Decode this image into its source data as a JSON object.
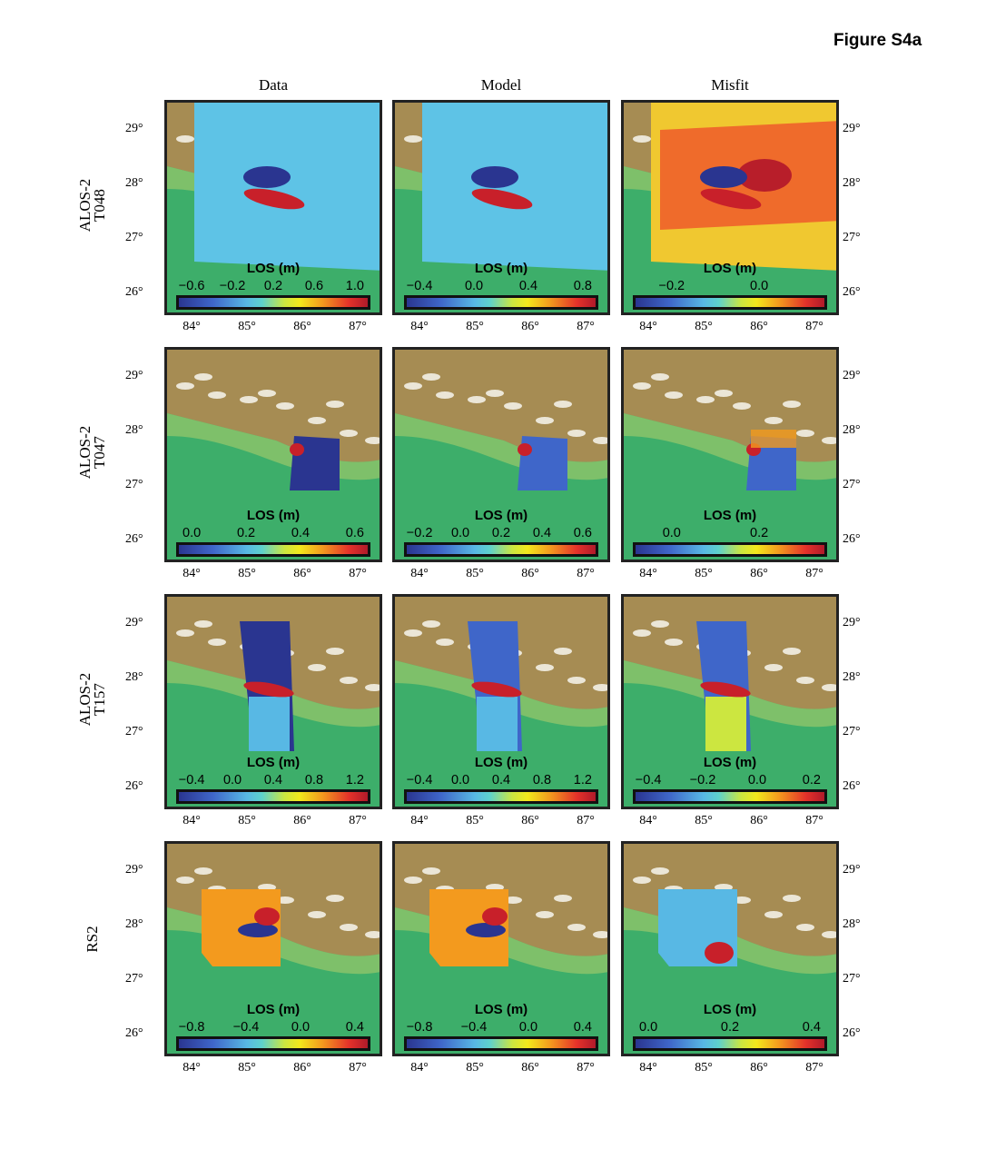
{
  "figure_title": "Figure S4a",
  "columns": [
    "Data",
    "Model",
    "Misfit"
  ],
  "los_label": "LOS (m)",
  "lat_ticks": [
    "29°",
    "28°",
    "27°",
    "26°"
  ],
  "lon_ticks": [
    "84°",
    "85°",
    "86°",
    "87°"
  ],
  "rows": [
    {
      "label": [
        "ALOS-2",
        "T048"
      ],
      "colorbars": [
        [
          "−0.6",
          "−0.2",
          "0.2",
          "0.6",
          "1.0"
        ],
        [
          "−0.4",
          "0.0",
          "0.4",
          "0.8"
        ],
        [
          "−0.2",
          "0.0"
        ]
      ]
    },
    {
      "label": [
        "ALOS-2",
        "T047"
      ],
      "colorbars": [
        [
          "0.0",
          "0.2",
          "0.4",
          "0.6"
        ],
        [
          "−0.2",
          "0.0",
          "0.2",
          "0.4",
          "0.6"
        ],
        [
          "0.0",
          "0.2"
        ]
      ]
    },
    {
      "label": [
        "ALOS-2",
        "T157"
      ],
      "colorbars": [
        [
          "−0.4",
          "0.0",
          "0.4",
          "0.8",
          "1.2"
        ],
        [
          "−0.4",
          "0.0",
          "0.4",
          "0.8",
          "1.2"
        ],
        [
          "−0.4",
          "−0.2",
          "0.0",
          "0.2"
        ]
      ]
    },
    {
      "label": [
        "RS2"
      ],
      "colorbars": [
        [
          "−0.8",
          "−0.4",
          "0.0",
          "0.4"
        ],
        [
          "−0.8",
          "−0.4",
          "0.0",
          "0.4"
        ],
        [
          "0.0",
          "0.2",
          "0.4"
        ]
      ]
    }
  ],
  "colors": {
    "lowland": "#3dae6a",
    "hills": "#b9864f",
    "snow": "#f3efe6",
    "deformation_low": "#2a3590",
    "deformation_high": "#c8202a"
  }
}
